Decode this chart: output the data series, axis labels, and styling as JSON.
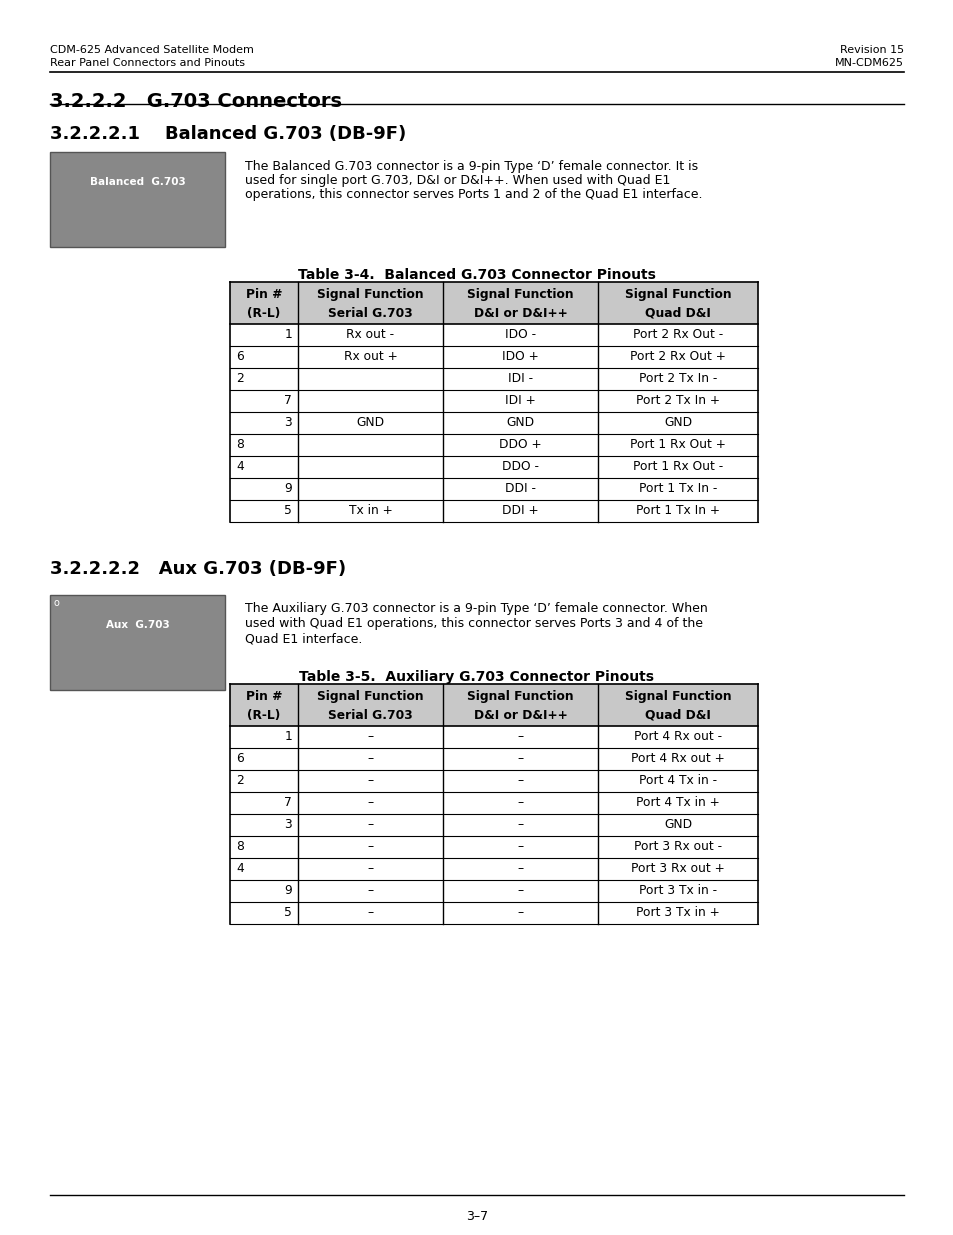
{
  "page_header_left1": "CDM-625 Advanced Satellite Modem",
  "page_header_left2": "Rear Panel Connectors and Pinouts",
  "page_header_right1": "Revision 15",
  "page_header_right2": "MN-CDM625",
  "section_title": "3.2.2.2   G.703 Connectors",
  "subsection1_title": "3.2.2.2.1    Balanced G.703 (DB-9F)",
  "subsection1_desc": "The Balanced G.703 connector is a 9-pin Type ‘D’ female connector. It is\nused for single port G.703, D&I or D&I++. When used with Quad E1\noperations, this connector serves Ports 1 and 2 of the Quad E1 interface.",
  "table1_title": "Table 3-4.  Balanced G.703 Connector Pinouts",
  "table1_headers": [
    "Pin #\n(R-L)",
    "Signal Function\nSerial G.703",
    "Signal Function\nD&I or D&I++",
    "Signal Function\nQuad D&I"
  ],
  "table1_rows": [
    [
      "1",
      "Rx out -",
      "IDO -",
      "Port 2 Rx Out -"
    ],
    [
      "6",
      "Rx out +",
      "IDO +",
      "Port 2 Rx Out +"
    ],
    [
      "2",
      "",
      "IDI -",
      "Port 2 Tx In -"
    ],
    [
      "7",
      "",
      "IDI +",
      "Port 2 Tx In +"
    ],
    [
      "3",
      "GND",
      "GND",
      "GND"
    ],
    [
      "8",
      "",
      "DDO +",
      "Port 1 Rx Out +"
    ],
    [
      "4",
      "",
      "DDO -",
      "Port 1 Rx Out -"
    ],
    [
      "9",
      "",
      "DDI -",
      "Port 1 Tx In -"
    ],
    [
      "5",
      "Tx in +",
      "DDI +",
      "Port 1 Tx In +"
    ]
  ],
  "subsection2_title": "3.2.2.2.2   Aux G.703 (DB-9F)",
  "subsection2_desc": "The Auxiliary G.703 connector is a 9-pin Type ‘D’ female connector. When\nused with Quad E1 operations, this connector serves Ports 3 and 4 of the\nQuad E1 interface.",
  "table2_title": "Table 3-5.  Auxiliary G.703 Connector Pinouts",
  "table2_headers": [
    "Pin #\n(R-L)",
    "Signal Function\nSerial G.703",
    "Signal Function\nD&I or D&I++",
    "Signal Function\nQuad D&I"
  ],
  "table2_rows": [
    [
      "1",
      "–",
      "–",
      "Port 4 Rx out -"
    ],
    [
      "6",
      "–",
      "–",
      "Port 4 Rx out +"
    ],
    [
      "2",
      "–",
      "–",
      "Port 4 Tx in -"
    ],
    [
      "7",
      "–",
      "–",
      "Port 4 Tx in +"
    ],
    [
      "3",
      "–",
      "–",
      "GND"
    ],
    [
      "8",
      "–",
      "–",
      "Port 3 Rx out -"
    ],
    [
      "4",
      "–",
      "–",
      "Port 3 Rx out +"
    ],
    [
      "9",
      "–",
      "–",
      "Port 3 Tx in -"
    ],
    [
      "5",
      "–",
      "–",
      "Port 3 Tx in +"
    ]
  ],
  "page_footer": "3–7",
  "bg_color": "#ffffff",
  "text_color": "#000000",
  "header_bg": "#d3d3d3",
  "table_border_color": "#000000"
}
